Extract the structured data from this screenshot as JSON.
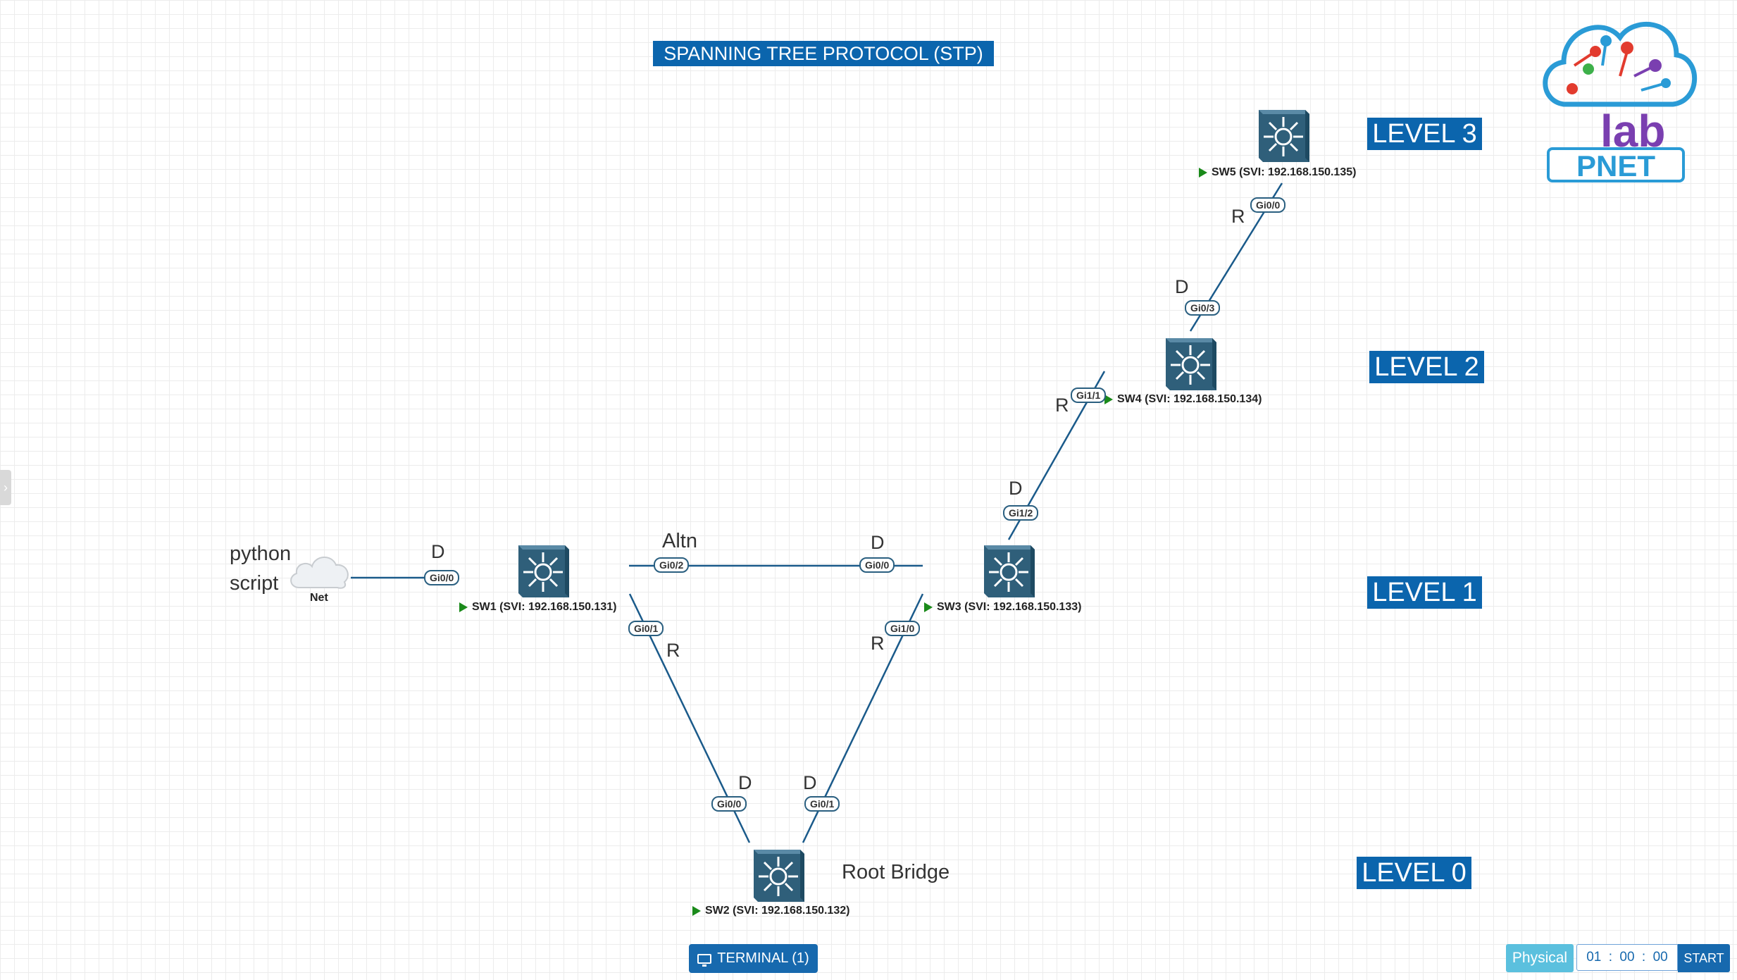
{
  "title": "SPANNING TREE PROTOCOL (STP)",
  "levels": {
    "level3": "LEVEL 3",
    "level2": "LEVEL 2",
    "level1": "LEVEL 1",
    "level0": "LEVEL 0"
  },
  "logo": {
    "line1": "lab",
    "line2": "PNET"
  },
  "nodes": {
    "sw1": "SW1 (SVI: 192.168.150.131)",
    "sw2": "SW2 (SVI: 192.168.150.132)",
    "sw3": "SW3 (SVI: 192.168.150.133)",
    "sw4": "SW4 (SVI: 192.168.150.134)",
    "sw5": "SW5 (SVI: 192.168.150.135)",
    "cloud": "Net"
  },
  "annotations": {
    "python_script": "python\nscript",
    "root_bridge": "Root Bridge",
    "altn": "Altn"
  },
  "ports": {
    "cloud_gi0_0": "Gi0/0",
    "sw1_gi0_2": "Gi0/2",
    "sw3_gi0_0": "Gi0/0",
    "sw1_gi0_1": "Gi0/1",
    "sw3_gi1_0": "Gi1/0",
    "sw2_gi0_0": "Gi0/0",
    "sw2_gi0_1": "Gi0/1",
    "sw3_gi1_2": "Gi1/2",
    "sw4_gi1_1": "Gi1/1",
    "sw4_gi0_3": "Gi0/3",
    "sw5_gi0_0": "Gi0/0"
  },
  "roles": {
    "cloud_link": "D",
    "sw3_gi0_0": "D",
    "sw1_gi0_1": "R",
    "sw3_gi1_0": "R",
    "sw2_gi0_0": "D",
    "sw2_gi0_1": "D",
    "sw3_gi1_2": "D",
    "sw4_gi1_1": "R",
    "sw4_gi0_3": "D",
    "sw5_gi0_0": "R"
  },
  "footer": {
    "terminal": "TERMINAL (1)",
    "physical": "Physical",
    "timer_h": "01",
    "timer_m": "00",
    "timer_s": "00",
    "timer_sep": ":",
    "start": "START"
  },
  "colors": {
    "banner": "#0b65ad",
    "switch": "#2f5f7a",
    "link": "#1a5a8a",
    "status_running": "#1a8a1a"
  }
}
